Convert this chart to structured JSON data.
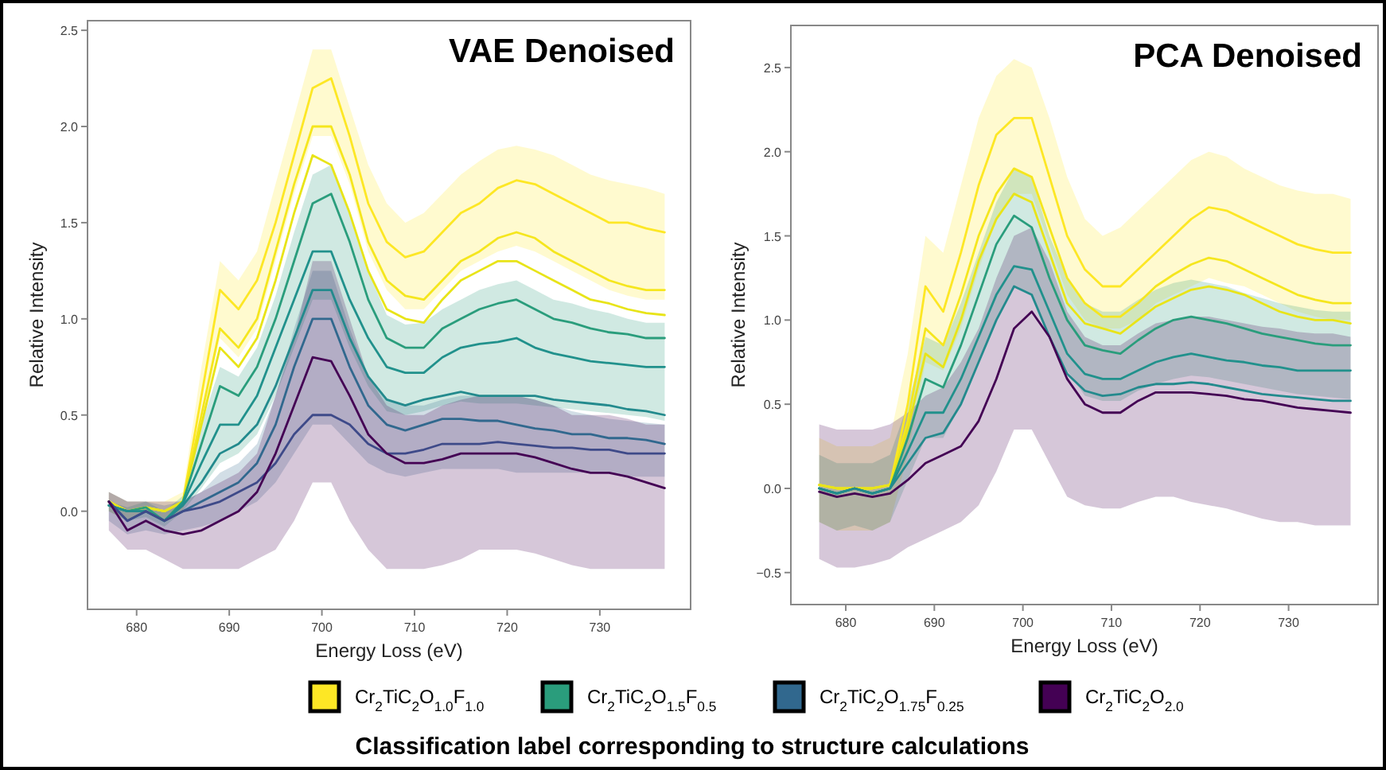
{
  "chart_data": [
    {
      "type": "line",
      "title": "VAE Denoised",
      "xlabel": "Energy Loss (eV)",
      "ylabel": "Relative Intensity",
      "xlim": [
        674.7,
        739.8
      ],
      "ylim": [
        -0.51,
        2.55
      ],
      "xticks": [
        680,
        690,
        700,
        710,
        720,
        730
      ],
      "yticks": [
        {
          "value": 0,
          "label": "0.0"
        },
        {
          "value": 0.5,
          "label": "0.5"
        },
        {
          "value": 1,
          "label": "1.0"
        },
        {
          "value": 1.5,
          "label": "1.5"
        },
        {
          "value": 2,
          "label": "2.0"
        },
        {
          "value": 2.5,
          "label": "2.5"
        }
      ],
      "legend": "bottom",
      "annotations": [
        "Classification label corresponding to structure calculations"
      ],
      "x": [
        677,
        679,
        681,
        683,
        685,
        687,
        689,
        691,
        693,
        695,
        697,
        699,
        701,
        703,
        705,
        707,
        709,
        711,
        713,
        715,
        717,
        719,
        721,
        723,
        725,
        727,
        729,
        731,
        733,
        735,
        737
      ],
      "series": [
        {
          "name": "Cr$_{2}$TiC$_{2}$O$_{1.0}$F$_{1.0}$",
          "color": "#fde725",
          "values": [
            0.05,
            0.0,
            0.02,
            0.0,
            0.05,
            0.6,
            1.15,
            1.05,
            1.2,
            1.5,
            1.85,
            2.2,
            2.25,
            1.95,
            1.6,
            1.4,
            1.32,
            1.35,
            1.45,
            1.55,
            1.6,
            1.68,
            1.72,
            1.7,
            1.65,
            1.6,
            1.55,
            1.5,
            1.5,
            1.47,
            1.45
          ],
          "upper": [
            0.1,
            0.05,
            0.05,
            0.05,
            0.1,
            0.75,
            1.3,
            1.2,
            1.35,
            1.7,
            2.05,
            2.4,
            2.4,
            2.1,
            1.8,
            1.6,
            1.5,
            1.55,
            1.65,
            1.75,
            1.82,
            1.88,
            1.9,
            1.88,
            1.85,
            1.8,
            1.75,
            1.72,
            1.7,
            1.68,
            1.65
          ],
          "lower": [
            0.0,
            -0.05,
            0.0,
            -0.05,
            0.0,
            0.45,
            0.9,
            0.8,
            0.95,
            1.3,
            1.65,
            1.95,
            1.95,
            1.7,
            1.35,
            1.15,
            1.05,
            1.05,
            1.15,
            1.25,
            1.3,
            1.35,
            1.38,
            1.35,
            1.3,
            1.25,
            1.2,
            1.15,
            1.12,
            1.1,
            1.1
          ]
        },
        {
          "color": "#f5e61e",
          "values": [
            0.05,
            0.0,
            0.02,
            0.0,
            0.05,
            0.5,
            0.95,
            0.85,
            1.0,
            1.35,
            1.7,
            2.0,
            2.0,
            1.75,
            1.4,
            1.2,
            1.12,
            1.1,
            1.2,
            1.3,
            1.35,
            1.42,
            1.45,
            1.42,
            1.35,
            1.3,
            1.25,
            1.2,
            1.17,
            1.15,
            1.15
          ]
        },
        {
          "color": "#e8e419",
          "values": [
            0.05,
            0.0,
            0.02,
            0.0,
            0.05,
            0.45,
            0.85,
            0.75,
            0.9,
            1.2,
            1.55,
            1.85,
            1.8,
            1.55,
            1.25,
            1.05,
            1.0,
            0.98,
            1.1,
            1.2,
            1.25,
            1.3,
            1.3,
            1.25,
            1.2,
            1.15,
            1.1,
            1.08,
            1.05,
            1.03,
            1.02
          ]
        },
        {
          "name": "Cr$_{2}$TiC$_{2}$O$_{1.5}$F$_{0.5}$",
          "color": "#2a9d7c",
          "values": [
            0.03,
            0.0,
            0.02,
            -0.05,
            0.05,
            0.35,
            0.65,
            0.6,
            0.75,
            1.0,
            1.3,
            1.6,
            1.65,
            1.4,
            1.1,
            0.9,
            0.85,
            0.85,
            0.95,
            1.0,
            1.05,
            1.08,
            1.1,
            1.05,
            1.0,
            0.98,
            0.95,
            0.93,
            0.92,
            0.9,
            0.9
          ],
          "upper": [
            0.05,
            0.02,
            0.05,
            0.0,
            0.08,
            0.45,
            0.75,
            0.7,
            0.85,
            1.12,
            1.45,
            1.75,
            1.8,
            1.55,
            1.25,
            1.02,
            0.97,
            0.98,
            1.05,
            1.1,
            1.15,
            1.18,
            1.2,
            1.15,
            1.1,
            1.08,
            1.05,
            1.03,
            1.0,
            0.98,
            0.98
          ],
          "lower": [
            0.0,
            -0.05,
            -0.03,
            -0.08,
            0.0,
            0.12,
            0.25,
            0.3,
            0.4,
            0.6,
            0.85,
            1.1,
            1.1,
            0.85,
            0.65,
            0.52,
            0.5,
            0.52,
            0.55,
            0.57,
            0.56,
            0.56,
            0.56,
            0.55,
            0.54,
            0.53,
            0.52,
            0.51,
            0.5,
            0.49,
            0.47
          ]
        },
        {
          "color": "#21918c",
          "values": [
            0.03,
            0.0,
            0.0,
            -0.05,
            0.04,
            0.25,
            0.45,
            0.45,
            0.6,
            0.85,
            1.1,
            1.35,
            1.35,
            1.1,
            0.9,
            0.75,
            0.72,
            0.72,
            0.8,
            0.85,
            0.87,
            0.88,
            0.9,
            0.85,
            0.82,
            0.8,
            0.78,
            0.77,
            0.76,
            0.75,
            0.75
          ]
        },
        {
          "color": "#238a8d",
          "values": [
            0.03,
            0.0,
            0.0,
            -0.05,
            0.03,
            0.15,
            0.3,
            0.35,
            0.45,
            0.65,
            0.9,
            1.15,
            1.15,
            0.9,
            0.7,
            0.58,
            0.55,
            0.58,
            0.6,
            0.62,
            0.6,
            0.6,
            0.6,
            0.6,
            0.58,
            0.57,
            0.56,
            0.55,
            0.53,
            0.52,
            0.5
          ]
        },
        {
          "name": "Cr$_{2}$TiC$_{2}$O$_{1.75}$F$_{0.25}$",
          "color": "#31688e",
          "values": [
            0.05,
            -0.05,
            0.0,
            -0.05,
            0.0,
            0.05,
            0.1,
            0.15,
            0.25,
            0.45,
            0.75,
            1.0,
            1.0,
            0.75,
            0.55,
            0.45,
            0.42,
            0.45,
            0.48,
            0.48,
            0.47,
            0.47,
            0.45,
            0.43,
            0.42,
            0.4,
            0.4,
            0.38,
            0.38,
            0.37,
            0.35
          ],
          "upper": [
            0.1,
            0.05,
            0.05,
            0.03,
            0.05,
            0.1,
            0.2,
            0.25,
            0.35,
            0.6,
            0.95,
            1.25,
            1.25,
            0.95,
            0.7,
            0.58,
            0.55,
            0.55,
            0.58,
            0.6,
            0.6,
            0.6,
            0.6,
            0.58,
            0.55,
            0.52,
            0.5,
            0.48,
            0.47,
            0.46,
            0.45
          ],
          "lower": [
            -0.05,
            -0.12,
            -0.1,
            -0.12,
            -0.1,
            -0.08,
            -0.05,
            0.0,
            0.05,
            0.15,
            0.3,
            0.45,
            0.45,
            0.35,
            0.25,
            0.2,
            0.18,
            0.2,
            0.22,
            0.22,
            0.22,
            0.22,
            0.2,
            0.2,
            0.2,
            0.2,
            0.2,
            0.2,
            0.18,
            0.18,
            0.18
          ]
        },
        {
          "color": "#3e4a89",
          "values": [
            0.05,
            -0.05,
            0.0,
            -0.05,
            0.0,
            0.02,
            0.05,
            0.1,
            0.15,
            0.25,
            0.4,
            0.5,
            0.5,
            0.45,
            0.35,
            0.3,
            0.3,
            0.32,
            0.35,
            0.35,
            0.35,
            0.36,
            0.35,
            0.34,
            0.33,
            0.33,
            0.32,
            0.32,
            0.3,
            0.3,
            0.3
          ]
        },
        {
          "name": "Cr$_{2}$TiC$_{2}$O$_{2.0}$",
          "color": "#440154",
          "values": [
            0.05,
            -0.1,
            -0.05,
            -0.1,
            -0.12,
            -0.1,
            -0.05,
            0.0,
            0.1,
            0.3,
            0.55,
            0.8,
            0.78,
            0.6,
            0.4,
            0.3,
            0.25,
            0.25,
            0.27,
            0.3,
            0.3,
            0.3,
            0.3,
            0.28,
            0.25,
            0.22,
            0.2,
            0.2,
            0.18,
            0.15,
            0.12
          ],
          "upper": [
            0.1,
            0.05,
            0.05,
            0.05,
            0.05,
            0.1,
            0.15,
            0.2,
            0.3,
            0.6,
            0.9,
            1.3,
            1.3,
            1.0,
            0.7,
            0.55,
            0.5,
            0.5,
            0.55,
            0.58,
            0.6,
            0.6,
            0.6,
            0.58,
            0.55,
            0.5,
            0.5,
            0.5,
            0.48,
            0.45,
            0.45
          ],
          "lower": [
            -0.1,
            -0.2,
            -0.2,
            -0.25,
            -0.3,
            -0.3,
            -0.3,
            -0.3,
            -0.25,
            -0.2,
            -0.05,
            0.15,
            0.15,
            -0.05,
            -0.2,
            -0.3,
            -0.3,
            -0.3,
            -0.28,
            -0.25,
            -0.2,
            -0.2,
            -0.2,
            -0.22,
            -0.25,
            -0.28,
            -0.3,
            -0.3,
            -0.3,
            -0.3,
            -0.3
          ]
        }
      ]
    },
    {
      "type": "line",
      "title": "PCA Denoised",
      "xlabel": "Energy Loss (eV)",
      "ylabel": "Relative Intensity",
      "xlim": [
        673.8,
        740.1
      ],
      "ylim": [
        -0.69,
        2.75
      ],
      "xticks": [
        680,
        690,
        700,
        710,
        720,
        730
      ],
      "yticks": [
        {
          "value": -0.5,
          "label": "−0.5"
        },
        {
          "value": 0,
          "label": "0.0"
        },
        {
          "value": 0.5,
          "label": "0.5"
        },
        {
          "value": 1,
          "label": "1.0"
        },
        {
          "value": 1.5,
          "label": "1.5"
        },
        {
          "value": 2,
          "label": "2.0"
        },
        {
          "value": 2.5,
          "label": "2.5"
        }
      ],
      "x": [
        677,
        679,
        681,
        683,
        685,
        687,
        689,
        691,
        693,
        695,
        697,
        699,
        701,
        703,
        705,
        707,
        709,
        711,
        713,
        715,
        717,
        719,
        721,
        723,
        725,
        727,
        729,
        731,
        733,
        735,
        737
      ],
      "series": [
        {
          "color": "#fde725",
          "values": [
            0.02,
            0.0,
            0.0,
            0.0,
            0.02,
            0.5,
            1.2,
            1.05,
            1.4,
            1.8,
            2.1,
            2.2,
            2.2,
            1.85,
            1.5,
            1.3,
            1.2,
            1.2,
            1.3,
            1.4,
            1.5,
            1.6,
            1.67,
            1.65,
            1.6,
            1.55,
            1.5,
            1.45,
            1.42,
            1.4,
            1.4
          ],
          "upper": [
            0.3,
            0.25,
            0.25,
            0.25,
            0.3,
            0.8,
            1.5,
            1.4,
            1.8,
            2.2,
            2.45,
            2.55,
            2.5,
            2.2,
            1.85,
            1.6,
            1.5,
            1.55,
            1.65,
            1.75,
            1.85,
            1.95,
            2.0,
            1.97,
            1.9,
            1.85,
            1.8,
            1.77,
            1.75,
            1.75,
            1.72
          ],
          "lower": [
            -0.2,
            -0.25,
            -0.25,
            -0.25,
            -0.2,
            0.2,
            0.75,
            0.7,
            0.95,
            1.3,
            1.6,
            1.75,
            1.75,
            1.45,
            1.15,
            1.0,
            0.95,
            0.95,
            1.0,
            1.1,
            1.15,
            1.2,
            1.25,
            1.22,
            1.2,
            1.15,
            1.1,
            1.05,
            1.02,
            1.0,
            1.0
          ]
        },
        {
          "color": "#f5e61e",
          "values": [
            0.02,
            0.0,
            0.0,
            0.0,
            0.02,
            0.4,
            0.95,
            0.85,
            1.15,
            1.5,
            1.75,
            1.9,
            1.85,
            1.55,
            1.25,
            1.1,
            1.02,
            1.02,
            1.1,
            1.2,
            1.27,
            1.33,
            1.37,
            1.35,
            1.3,
            1.25,
            1.2,
            1.15,
            1.12,
            1.1,
            1.1
          ]
        },
        {
          "color": "#e8e419",
          "values": [
            0.02,
            0.0,
            0.0,
            0.0,
            0.02,
            0.35,
            0.8,
            0.72,
            1.0,
            1.35,
            1.6,
            1.75,
            1.7,
            1.4,
            1.1,
            0.98,
            0.95,
            0.92,
            1.0,
            1.08,
            1.13,
            1.18,
            1.2,
            1.18,
            1.15,
            1.1,
            1.05,
            1.02,
            1.0,
            1.0,
            0.98
          ]
        },
        {
          "color": "#2a9d7c",
          "values": [
            0.0,
            -0.03,
            0.0,
            -0.03,
            0.0,
            0.3,
            0.65,
            0.6,
            0.85,
            1.15,
            1.45,
            1.62,
            1.55,
            1.25,
            1.0,
            0.85,
            0.82,
            0.8,
            0.88,
            0.95,
            1.0,
            1.02,
            1.0,
            0.98,
            0.95,
            0.92,
            0.9,
            0.88,
            0.86,
            0.85,
            0.85
          ],
          "upper": [
            0.2,
            0.15,
            0.15,
            0.15,
            0.2,
            0.5,
            0.9,
            0.85,
            1.1,
            1.4,
            1.7,
            1.9,
            1.85,
            1.5,
            1.25,
            1.1,
            1.05,
            1.05,
            1.12,
            1.18,
            1.22,
            1.24,
            1.22,
            1.2,
            1.16,
            1.13,
            1.1,
            1.08,
            1.06,
            1.05,
            1.05
          ],
          "lower": [
            -0.2,
            -0.25,
            -0.22,
            -0.25,
            -0.2,
            0.05,
            0.3,
            0.3,
            0.5,
            0.75,
            1.0,
            1.2,
            1.15,
            0.9,
            0.7,
            0.55,
            0.52,
            0.52,
            0.58,
            0.62,
            0.65,
            0.67,
            0.66,
            0.64,
            0.62,
            0.6,
            0.58,
            0.56,
            0.55,
            0.54,
            0.53
          ]
        },
        {
          "color": "#21918c",
          "values": [
            0.0,
            -0.03,
            0.0,
            -0.03,
            0.0,
            0.22,
            0.45,
            0.45,
            0.65,
            0.9,
            1.15,
            1.32,
            1.3,
            1.05,
            0.8,
            0.68,
            0.65,
            0.65,
            0.7,
            0.75,
            0.78,
            0.8,
            0.78,
            0.76,
            0.75,
            0.73,
            0.72,
            0.7,
            0.7,
            0.7,
            0.7
          ]
        },
        {
          "color": "#238a8d",
          "values": [
            0.0,
            -0.03,
            0.0,
            -0.03,
            0.0,
            0.15,
            0.3,
            0.33,
            0.5,
            0.75,
            1.0,
            1.2,
            1.15,
            0.9,
            0.68,
            0.58,
            0.55,
            0.56,
            0.6,
            0.62,
            0.62,
            0.63,
            0.62,
            0.6,
            0.58,
            0.56,
            0.55,
            0.54,
            0.53,
            0.52,
            0.52
          ]
        },
        {
          "color": "#440154",
          "values": [
            -0.02,
            -0.05,
            -0.03,
            -0.05,
            -0.03,
            0.05,
            0.15,
            0.2,
            0.25,
            0.4,
            0.65,
            0.95,
            1.05,
            0.9,
            0.65,
            0.5,
            0.45,
            0.45,
            0.52,
            0.57,
            0.57,
            0.57,
            0.56,
            0.55,
            0.53,
            0.52,
            0.5,
            0.48,
            0.47,
            0.46,
            0.45
          ],
          "upper": [
            0.38,
            0.35,
            0.35,
            0.35,
            0.38,
            0.45,
            0.55,
            0.6,
            0.75,
            0.95,
            1.25,
            1.5,
            1.55,
            1.35,
            1.05,
            0.9,
            0.85,
            0.85,
            0.92,
            0.98,
            1.0,
            1.02,
            1.02,
            1.0,
            0.98,
            0.96,
            0.95,
            0.93,
            0.92,
            0.92,
            0.9
          ],
          "lower": [
            -0.42,
            -0.47,
            -0.47,
            -0.45,
            -0.42,
            -0.35,
            -0.3,
            -0.25,
            -0.2,
            -0.1,
            0.1,
            0.35,
            0.35,
            0.15,
            -0.05,
            -0.1,
            -0.12,
            -0.12,
            -0.08,
            -0.05,
            -0.05,
            -0.08,
            -0.1,
            -0.12,
            -0.15,
            -0.18,
            -0.2,
            -0.2,
            -0.22,
            -0.22,
            -0.22
          ]
        }
      ]
    }
  ]
}
